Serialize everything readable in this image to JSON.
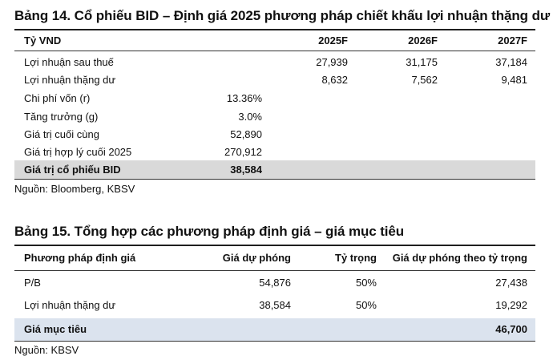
{
  "table14": {
    "title": "Bảng 14. Cổ phiếu BID – Định giá 2025 phương pháp chiết khấu lợi nhuận thặng dư",
    "header": {
      "unit": "Tỷ VND",
      "y2025": "2025F",
      "y2026": "2026F",
      "y2027": "2027F"
    },
    "rows": [
      {
        "label": "Lợi nhuận sau thuế",
        "value": "",
        "y2025": "27,939",
        "y2026": "31,175",
        "y2027": "37,184"
      },
      {
        "label": "Lợi nhuận thặng dư",
        "value": "",
        "y2025": "8,632",
        "y2026": "7,562",
        "y2027": "9,481"
      },
      {
        "label": "Chi phí vốn (r)",
        "value": "13.36%"
      },
      {
        "label": "Tăng trưởng (g)",
        "value": "3.0%"
      },
      {
        "label": "Giá trị cuối cùng",
        "value": "52,890"
      },
      {
        "label": "Giá trị hợp lý cuối 2025",
        "value": "270,912"
      },
      {
        "label": "Giá trị cổ phiếu BID",
        "value": "38,584"
      }
    ],
    "source": "Nguồn: Bloomberg, KBSV"
  },
  "table15": {
    "title": "Bảng 15. Tổng hợp các phương pháp định giá – giá mục tiêu",
    "header": {
      "method": "Phương pháp định giá",
      "price": "Giá dự phóng",
      "weight": "Tỷ trọng",
      "weighted": "Giá dự phóng theo tỷ trọng"
    },
    "rows": [
      {
        "method": "P/B",
        "price": "54,876",
        "weight": "50%",
        "weighted": "27,438"
      },
      {
        "method": "Lợi nhuận thặng dư",
        "price": "38,584",
        "weight": "50%",
        "weighted": "19,292"
      }
    ],
    "total": {
      "label": "Giá mục tiêu",
      "value": "46,700"
    },
    "source": "Nguồn: KBSV"
  }
}
